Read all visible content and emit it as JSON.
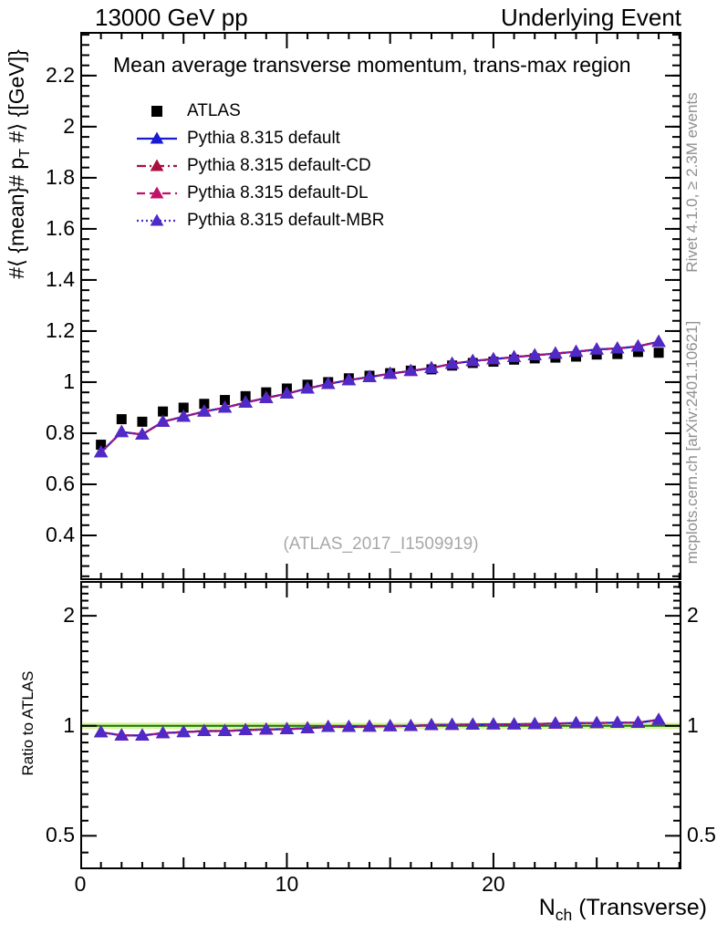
{
  "header": {
    "left": "13000 GeV pp",
    "right": "Underlying Event"
  },
  "title": "Mean average transverse momentum, trans-max region",
  "watermark": "(ATLAS_2017_I1509919)",
  "side_notes": {
    "top_right": "Rivet 4.1.0, ≥ 2.3M events",
    "bottom_right": "mcplots.cern.ch [arXiv:2401.10621]"
  },
  "axis_labels": {
    "y_main": {
      "pre": "#⟨ {mean}# p",
      "sub": "T",
      "post": " #⟩ {[GeV]}"
    },
    "y_ratio": "Ratio to ATLAS",
    "x": {
      "pre": "N",
      "sub": "ch",
      "post": " (Transverse)"
    }
  },
  "colors": {
    "frame": "#000000",
    "atlas": "#000000",
    "pythia_default": "#1a1ad2",
    "pythia_cd": "#a80f3e",
    "pythia_dl": "#c01168",
    "pythia_mbr": "#4e2ac8",
    "band_fill": "#d8f3a0",
    "band_line": "#157800",
    "note_gray": "#8f8f8f",
    "watermark_gray": "#a8a8a8"
  },
  "chart_data": {
    "type": "line",
    "title": "Mean average transverse momentum, trans-max region",
    "xlabel": "N_ch (Transverse)",
    "x": [
      1,
      2,
      3,
      4,
      5,
      6,
      7,
      8,
      9,
      10,
      11,
      12,
      13,
      14,
      15,
      16,
      17,
      18,
      19,
      20,
      21,
      22,
      23,
      24,
      25,
      26,
      27,
      28
    ],
    "xlim": [
      0,
      29.1
    ],
    "xticks": [
      0,
      10,
      20
    ],
    "main_panel": {
      "ylabel": "<mean pT> [GeV]",
      "scale": "linear",
      "ylim": [
        0.225,
        2.371
      ],
      "yticks": [
        0.4,
        0.6,
        0.8,
        1,
        1.2,
        1.4,
        1.6,
        1.8,
        2,
        2.2
      ],
      "minor_step": 0.04,
      "grid": false
    },
    "ratio_panel": {
      "ylabel": "Ratio to ATLAS",
      "scale": "log2",
      "ylim": [
        0.405,
        2.49
      ],
      "yticks": [
        0.5,
        1,
        2
      ],
      "minor_ticks": [
        0.45,
        0.55,
        0.6,
        0.65,
        0.7,
        0.75,
        0.8,
        0.85,
        0.9,
        0.95,
        1.1,
        1.2,
        1.3,
        1.4,
        1.5,
        1.6,
        1.7,
        1.8,
        1.9,
        2.1,
        2.2,
        2.3,
        2.4
      ],
      "band": {
        "center": 1,
        "halfwidth": 0.02
      },
      "grid": false
    },
    "legend_position": "top-left",
    "series": [
      {
        "name": "ATLAS",
        "role": "data",
        "marker": "square",
        "line": "none",
        "color_key": "atlas",
        "values": [
          0.755,
          0.855,
          0.845,
          0.885,
          0.9,
          0.915,
          0.93,
          0.945,
          0.96,
          0.975,
          0.99,
          1.0,
          1.015,
          1.025,
          1.035,
          1.045,
          1.05,
          1.065,
          1.075,
          1.08,
          1.088,
          1.093,
          1.096,
          1.1,
          1.108,
          1.11,
          1.118,
          1.115
        ]
      },
      {
        "name": "Pythia 8.315 default",
        "role": "mc",
        "marker": "triangle",
        "line": "solid",
        "color_key": "pythia_default",
        "values": [
          0.725,
          0.805,
          0.795,
          0.845,
          0.865,
          0.885,
          0.9,
          0.92,
          0.938,
          0.955,
          0.975,
          0.993,
          1.008,
          1.02,
          1.033,
          1.044,
          1.055,
          1.072,
          1.083,
          1.09,
          1.098,
          1.105,
          1.112,
          1.119,
          1.128,
          1.132,
          1.14,
          1.158
        ]
      },
      {
        "name": "Pythia 8.315 default-CD",
        "role": "mc",
        "marker": "triangle",
        "line": "dashdot",
        "color_key": "pythia_cd",
        "values": [
          0.725,
          0.805,
          0.795,
          0.845,
          0.865,
          0.885,
          0.9,
          0.92,
          0.938,
          0.955,
          0.975,
          0.993,
          1.008,
          1.02,
          1.033,
          1.044,
          1.055,
          1.072,
          1.083,
          1.09,
          1.098,
          1.105,
          1.112,
          1.119,
          1.128,
          1.132,
          1.14,
          1.158
        ]
      },
      {
        "name": "Pythia 8.315 default-DL",
        "role": "mc",
        "marker": "triangle",
        "line": "dashed",
        "color_key": "pythia_dl",
        "values": [
          0.725,
          0.805,
          0.795,
          0.845,
          0.865,
          0.885,
          0.9,
          0.92,
          0.938,
          0.955,
          0.975,
          0.993,
          1.008,
          1.02,
          1.033,
          1.044,
          1.055,
          1.072,
          1.083,
          1.09,
          1.098,
          1.105,
          1.112,
          1.119,
          1.128,
          1.132,
          1.14,
          1.158
        ]
      },
      {
        "name": "Pythia 8.315 default-MBR",
        "role": "mc",
        "marker": "triangle",
        "line": "dotted",
        "color_key": "pythia_mbr",
        "values": [
          0.725,
          0.805,
          0.795,
          0.845,
          0.865,
          0.885,
          0.9,
          0.92,
          0.938,
          0.955,
          0.975,
          0.993,
          1.008,
          1.02,
          1.033,
          1.044,
          1.055,
          1.072,
          1.083,
          1.09,
          1.098,
          1.105,
          1.112,
          1.119,
          1.128,
          1.132,
          1.14,
          1.158
        ]
      }
    ]
  }
}
